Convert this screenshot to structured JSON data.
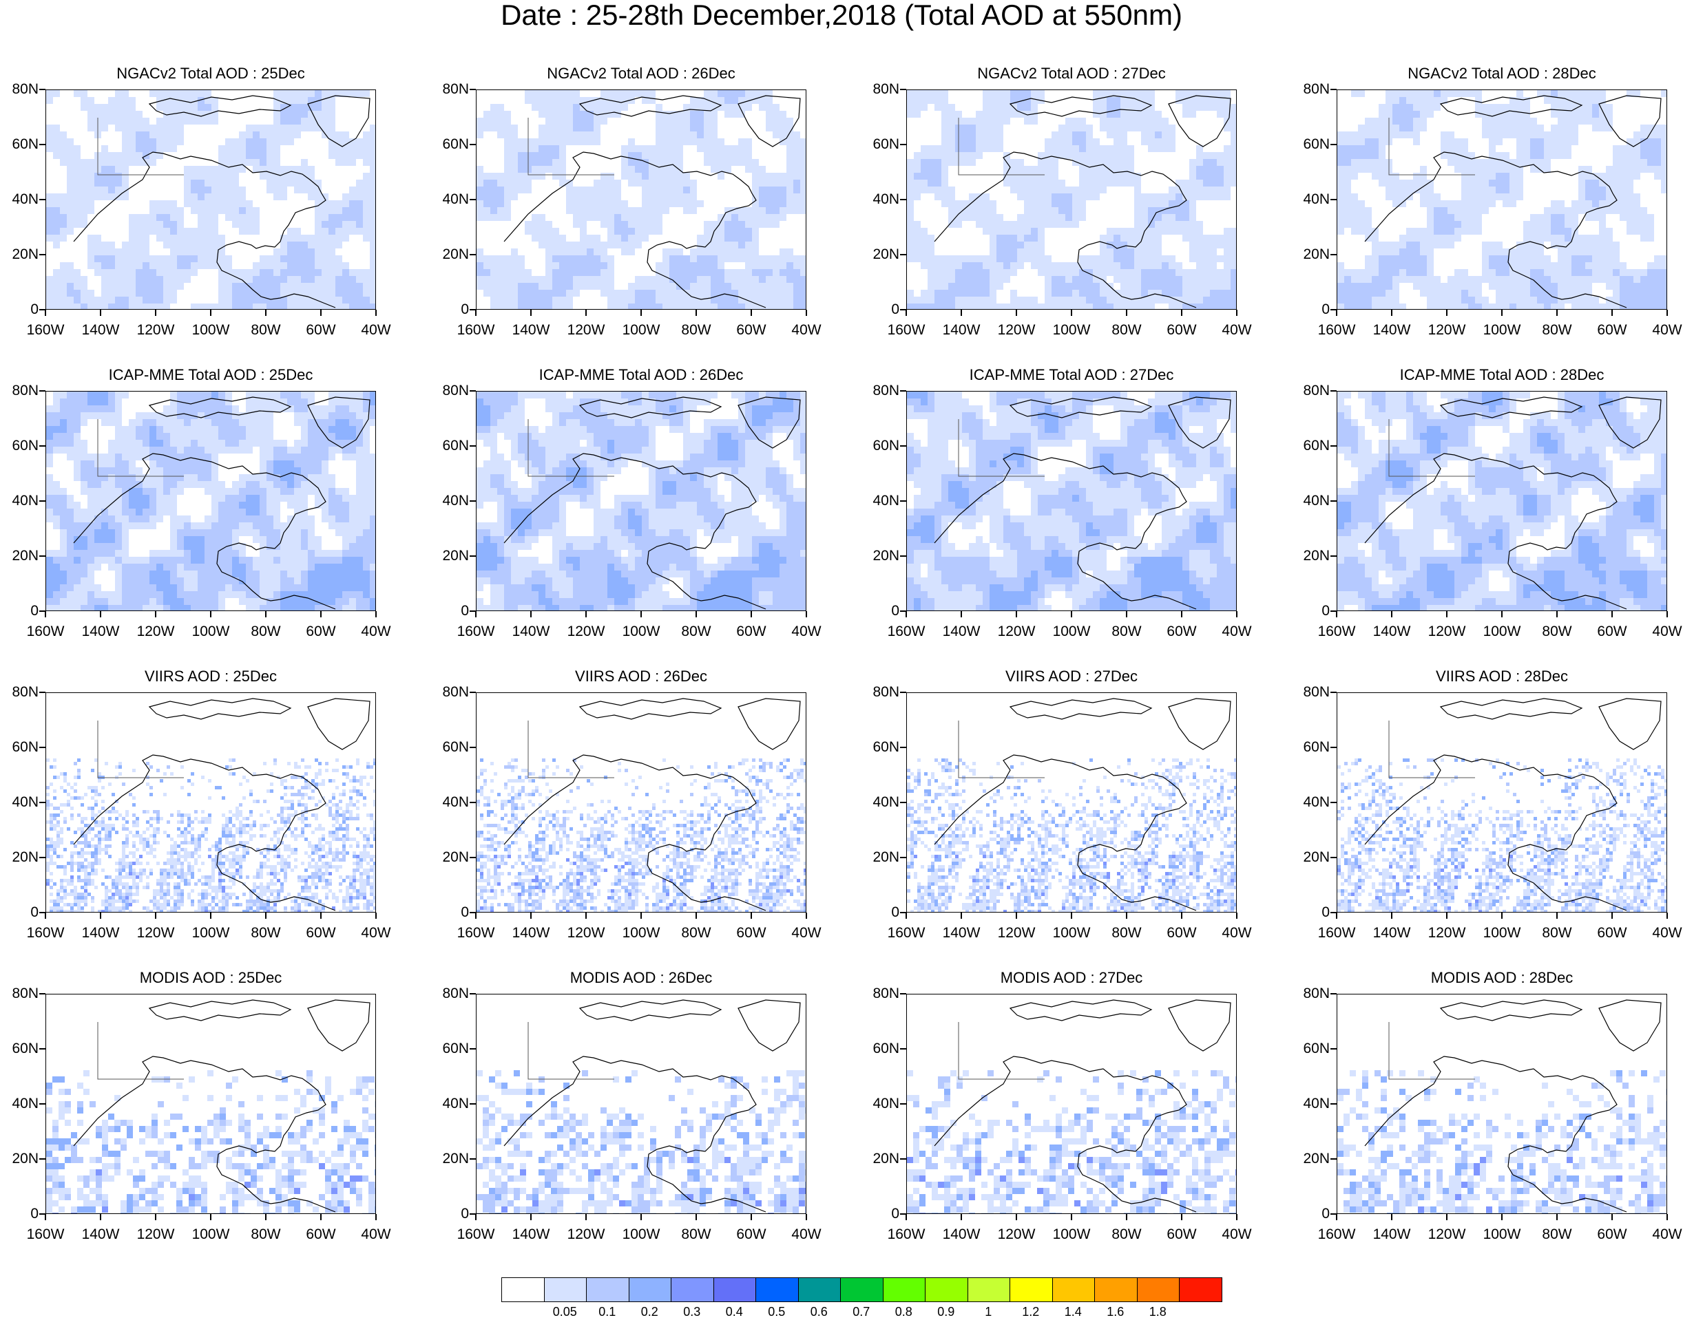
{
  "figure": {
    "title": "Date : 25-28th December,2018 (Total AOD at 550nm)"
  },
  "axes": {
    "lat_ticks": [
      "80N",
      "60N",
      "40N",
      "20N",
      "0"
    ],
    "lon_ticks": [
      "160W",
      "140W",
      "120W",
      "100W",
      "80W",
      "60W",
      "40W"
    ]
  },
  "rows": [
    {
      "product": "NGACv2",
      "titles": [
        "NGACv2 Total AOD : 25Dec",
        "NGACv2 Total AOD : 26Dec",
        "NGACv2 Total AOD : 27Dec",
        "NGACv2 Total AOD : 28Dec"
      ],
      "style": "model_light"
    },
    {
      "product": "ICAP-MME",
      "titles": [
        "ICAP-MME Total AOD : 25Dec",
        "ICAP-MME Total AOD : 26Dec",
        "ICAP-MME Total AOD : 27Dec",
        "ICAP-MME Total AOD : 28Dec"
      ],
      "style": "model_dense"
    },
    {
      "product": "VIIRS",
      "titles": [
        "VIIRS AOD : 25Dec",
        "VIIRS AOD : 26Dec",
        "VIIRS AOD : 27Dec",
        "VIIRS AOD : 28Dec"
      ],
      "style": "satellite_fine"
    },
    {
      "product": "MODIS",
      "titles": [
        "MODIS AOD : 25Dec",
        "MODIS AOD : 26Dec",
        "MODIS AOD : 27Dec",
        "MODIS AOD : 28Dec"
      ],
      "style": "satellite_coarse"
    }
  ],
  "colorbar": {
    "colors": [
      "#ffffff",
      "#d6e2ff",
      "#b5c9ff",
      "#8eb2ff",
      "#7f96ff",
      "#6370f8",
      "#0063ff",
      "#009696",
      "#00c633",
      "#63ff00",
      "#96ff00",
      "#c6ff33",
      "#ffff00",
      "#ffc600",
      "#ffa000",
      "#ff7c00",
      "#ff1900"
    ],
    "labels": [
      "0.05",
      "0.1",
      "0.2",
      "0.3",
      "0.4",
      "0.5",
      "0.6",
      "0.7",
      "0.8",
      "0.9",
      "1",
      "1.2",
      "1.4",
      "1.6",
      "1.8"
    ]
  }
}
